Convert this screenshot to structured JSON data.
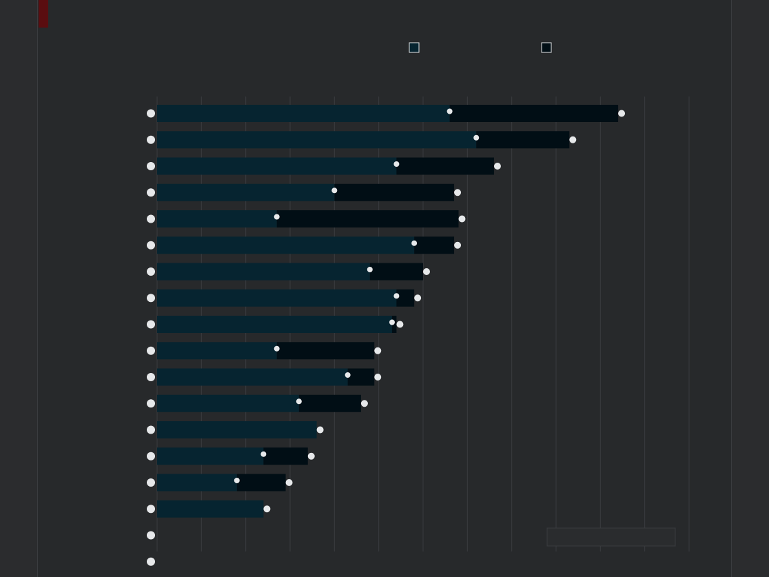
{
  "chart_data": {
    "type": "bar",
    "orientation": "horizontal",
    "stacked": true,
    "title": "",
    "subtitle": "",
    "legend": {
      "placement": "top-right",
      "entries": [
        "",
        ""
      ]
    },
    "x_ticks": [
      "",
      "",
      "",
      "",
      "",
      "",
      "",
      "",
      "",
      "",
      "",
      "",
      ""
    ],
    "categories": [
      "",
      "",
      "",
      "",
      "",
      "",
      "",
      "",
      "",
      "",
      "",
      "",
      "",
      "",
      "",
      "",
      "",
      ""
    ],
    "series": [
      {
        "values": [
          6.6,
          7.2,
          5.4,
          4.0,
          2.7,
          5.8,
          4.8,
          5.4,
          5.3,
          2.7,
          4.3,
          3.2,
          3.6,
          2.4,
          1.8,
          2.4,
          0,
          0
        ]
      },
      {
        "values": [
          3.8,
          2.1,
          2.2,
          2.7,
          4.1,
          0.9,
          1.2,
          0.4,
          0.1,
          2.2,
          0.6,
          1.4,
          0,
          1.0,
          1.1,
          0,
          0,
          0
        ]
      }
    ],
    "right_labels": [
      "",
      "",
      "",
      "",
      "",
      "",
      "",
      "",
      "",
      "",
      "",
      "",
      "",
      "",
      "",
      "",
      "",
      ""
    ],
    "colors": {
      "series0": "#062430",
      "series1": "#010e15",
      "grid": "#3a3c3f",
      "marker": "#e6e8ea"
    },
    "xlim": [
      0,
      12
    ],
    "grid": true,
    "note": ""
  }
}
